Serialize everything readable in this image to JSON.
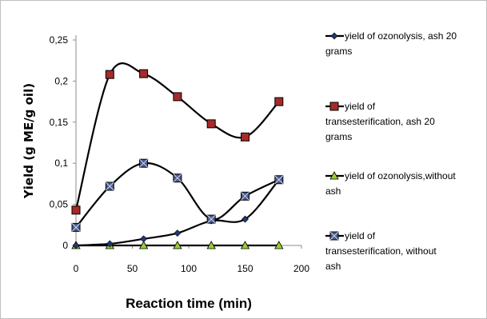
{
  "chart_data": {
    "type": "line",
    "title": "",
    "xlabel": "Reaction time (min)",
    "ylabel": "Yield (g ME/g oil)",
    "xlim": [
      0,
      200
    ],
    "ylim": [
      0,
      0.25
    ],
    "x_ticks": [
      "0",
      "50",
      "100",
      "150",
      "200"
    ],
    "y_ticks": [
      "0",
      "0,05",
      "0,1",
      "0,15",
      "0,2",
      "0,25"
    ],
    "grid": false,
    "legend_position": "right",
    "series": [
      {
        "name_lines": [
          "yield of ozonolysis, ash 20",
          "grams"
        ],
        "marker": "diamond",
        "marker_color": "#1f3a6e",
        "x": [
          0,
          30,
          60,
          90,
          120,
          150,
          180
        ],
        "y": [
          0,
          0.002,
          0.008,
          0.015,
          0.03,
          0.032,
          0.08
        ]
      },
      {
        "name_lines": [
          "yield of",
          "transesterification, ash 20",
          "grams"
        ],
        "marker": "square",
        "marker_color": "#a52a2a",
        "x": [
          0,
          30,
          60,
          90,
          120,
          150,
          180
        ],
        "y": [
          0.043,
          0.208,
          0.209,
          0.181,
          0.148,
          0.132,
          0.175
        ]
      },
      {
        "name_lines": [
          "yield of ozonolysis,without",
          "ash"
        ],
        "marker": "triangle",
        "marker_color": "#9acd32",
        "x": [
          0,
          30,
          60,
          90,
          120,
          150,
          180
        ],
        "y": [
          0,
          0,
          0,
          0,
          0,
          0,
          0
        ]
      },
      {
        "name_lines": [
          "yield of",
          "transesterification, without",
          "ash"
        ],
        "marker": "xsquare",
        "marker_color": "#4a5a8a",
        "x": [
          0,
          30,
          60,
          90,
          120,
          150,
          180
        ],
        "y": [
          0.022,
          0.072,
          0.1,
          0.082,
          0.032,
          0.06,
          0.08
        ]
      }
    ]
  }
}
